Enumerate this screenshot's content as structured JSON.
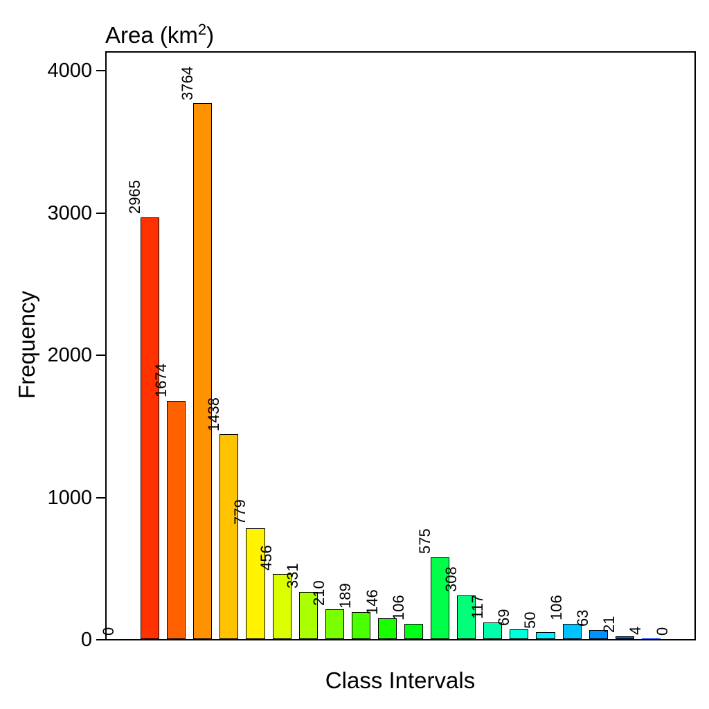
{
  "chart_data": {
    "type": "bar",
    "title": "Area (km²)",
    "title_base": "Area (km",
    "title_sup": "2",
    "title_close": ")",
    "xlabel": "Class Intervals",
    "ylabel": "Frequency",
    "ylim": [
      0,
      4000
    ],
    "yticks": [
      0,
      1000,
      2000,
      3000,
      4000
    ],
    "ytick_labels": [
      "0",
      "1000",
      "2000",
      "3000",
      "4000"
    ],
    "values": [
      0,
      2965,
      1674,
      3764,
      1438,
      779,
      456,
      331,
      210,
      189,
      146,
      106,
      575,
      308,
      117,
      69,
      50,
      106,
      63,
      21,
      4,
      0
    ],
    "bar_labels": [
      "0",
      "2965",
      "1674",
      "3764",
      "1438",
      "779",
      "456",
      "331",
      "210",
      "189",
      "146",
      "106",
      "575",
      "308",
      "117",
      "69",
      "50",
      "106",
      "63",
      "21",
      "4",
      "0"
    ],
    "bar_colors": [
      "#FF0000",
      "#FF3100",
      "#FF6100",
      "#FF9200",
      "#FFC200",
      "#FFF300",
      "#DBFF00",
      "#AAFF00",
      "#7AFF00",
      "#49FF00",
      "#18FF00",
      "#00FF18",
      "#00FF49",
      "#00FF7A",
      "#00FFAA",
      "#00FFDB",
      "#00F3FF",
      "#00C2FF",
      "#0092FF",
      "#0061FF",
      "#0031FF",
      "#0000FF"
    ],
    "bar_border_color": "#000000",
    "value_label_rotation_deg": 90,
    "grid": false,
    "legend": "none",
    "axis_color": "#000000",
    "background_color": "#FFFFFF"
  }
}
